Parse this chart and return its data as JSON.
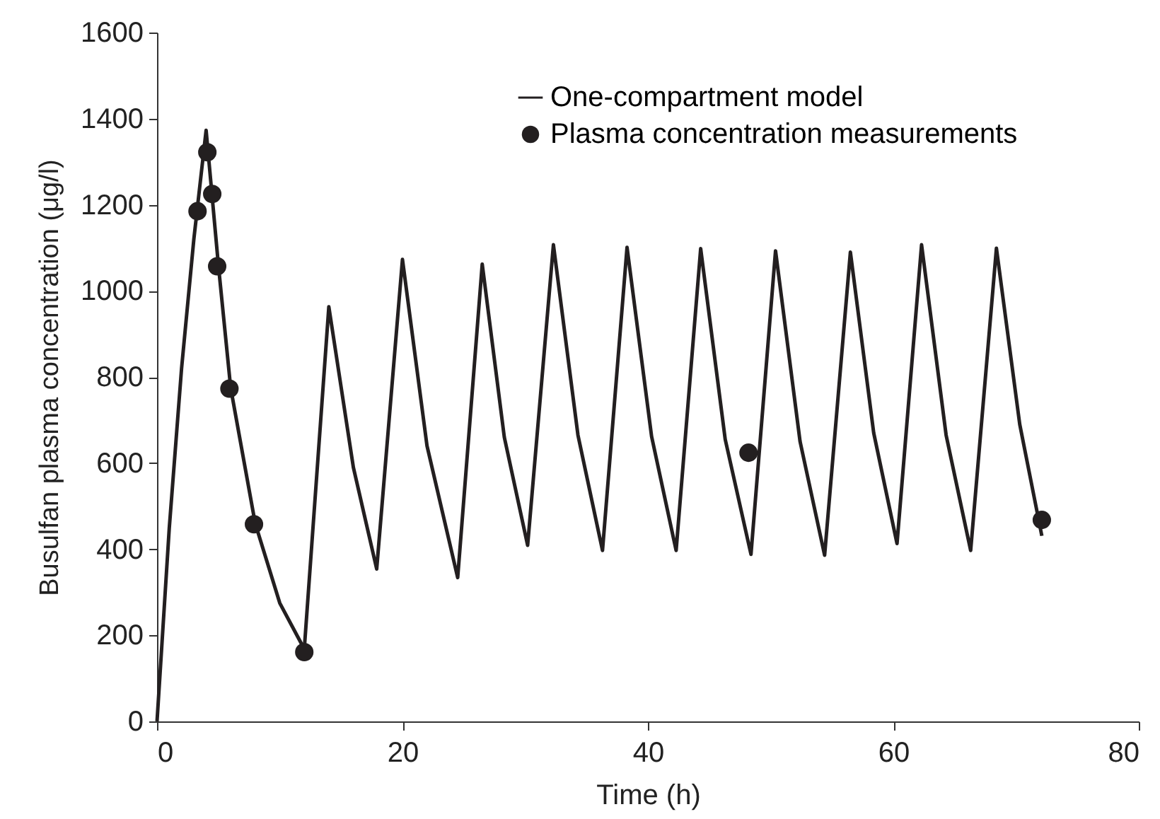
{
  "chart_data": {
    "type": "line",
    "xlabel": "Time (h)",
    "ylabel": "Busulfan plasma concentration (μg/l)",
    "xlim": [
      0,
      80
    ],
    "xticks": [
      0,
      20,
      40,
      60,
      80
    ],
    "ylim": [
      0,
      1600
    ],
    "yticks": [
      0,
      200,
      400,
      600,
      800,
      1000,
      1200,
      1400,
      1600
    ],
    "grid": false,
    "legend": "top right",
    "line_style": "solid",
    "series": [
      {
        "name": "One-compartment model",
        "type": "line",
        "color": "#231f20",
        "x": [
          0,
          1,
          2,
          3,
          4,
          5,
          6,
          8,
          10,
          12,
          14,
          16,
          17.9,
          20,
          22,
          24.5,
          26.5,
          28.3,
          30.2,
          32.3,
          34.3,
          36.3,
          38.3,
          40.3,
          42.3,
          44.3,
          46.3,
          48.4,
          50.4,
          52.4,
          54.4,
          56.5,
          58.4,
          60.3,
          62.3,
          64.3,
          66.3,
          68.4,
          70.3,
          72.1
        ],
        "values": [
          0,
          450,
          820,
          1120,
          1373,
          1060,
          775,
          460,
          275,
          168,
          963,
          590,
          354,
          1073,
          640,
          334,
          1062,
          660,
          409,
          1107,
          665,
          397,
          1101,
          662,
          397,
          1098,
          655,
          388,
          1093,
          650,
          386,
          1090,
          670,
          413,
          1107,
          665,
          397,
          1099,
          690,
          431
        ]
      },
      {
        "name": "Plasma concentration measurements",
        "type": "scatter",
        "marker": "circle",
        "color": "#231f20",
        "x": [
          3.3,
          4.1,
          4.5,
          4.9,
          5.9,
          7.9,
          12.0,
          48.2,
          72.1
        ],
        "values": [
          1185,
          1322,
          1225,
          1057,
          773,
          458,
          161,
          624,
          468
        ]
      }
    ]
  }
}
